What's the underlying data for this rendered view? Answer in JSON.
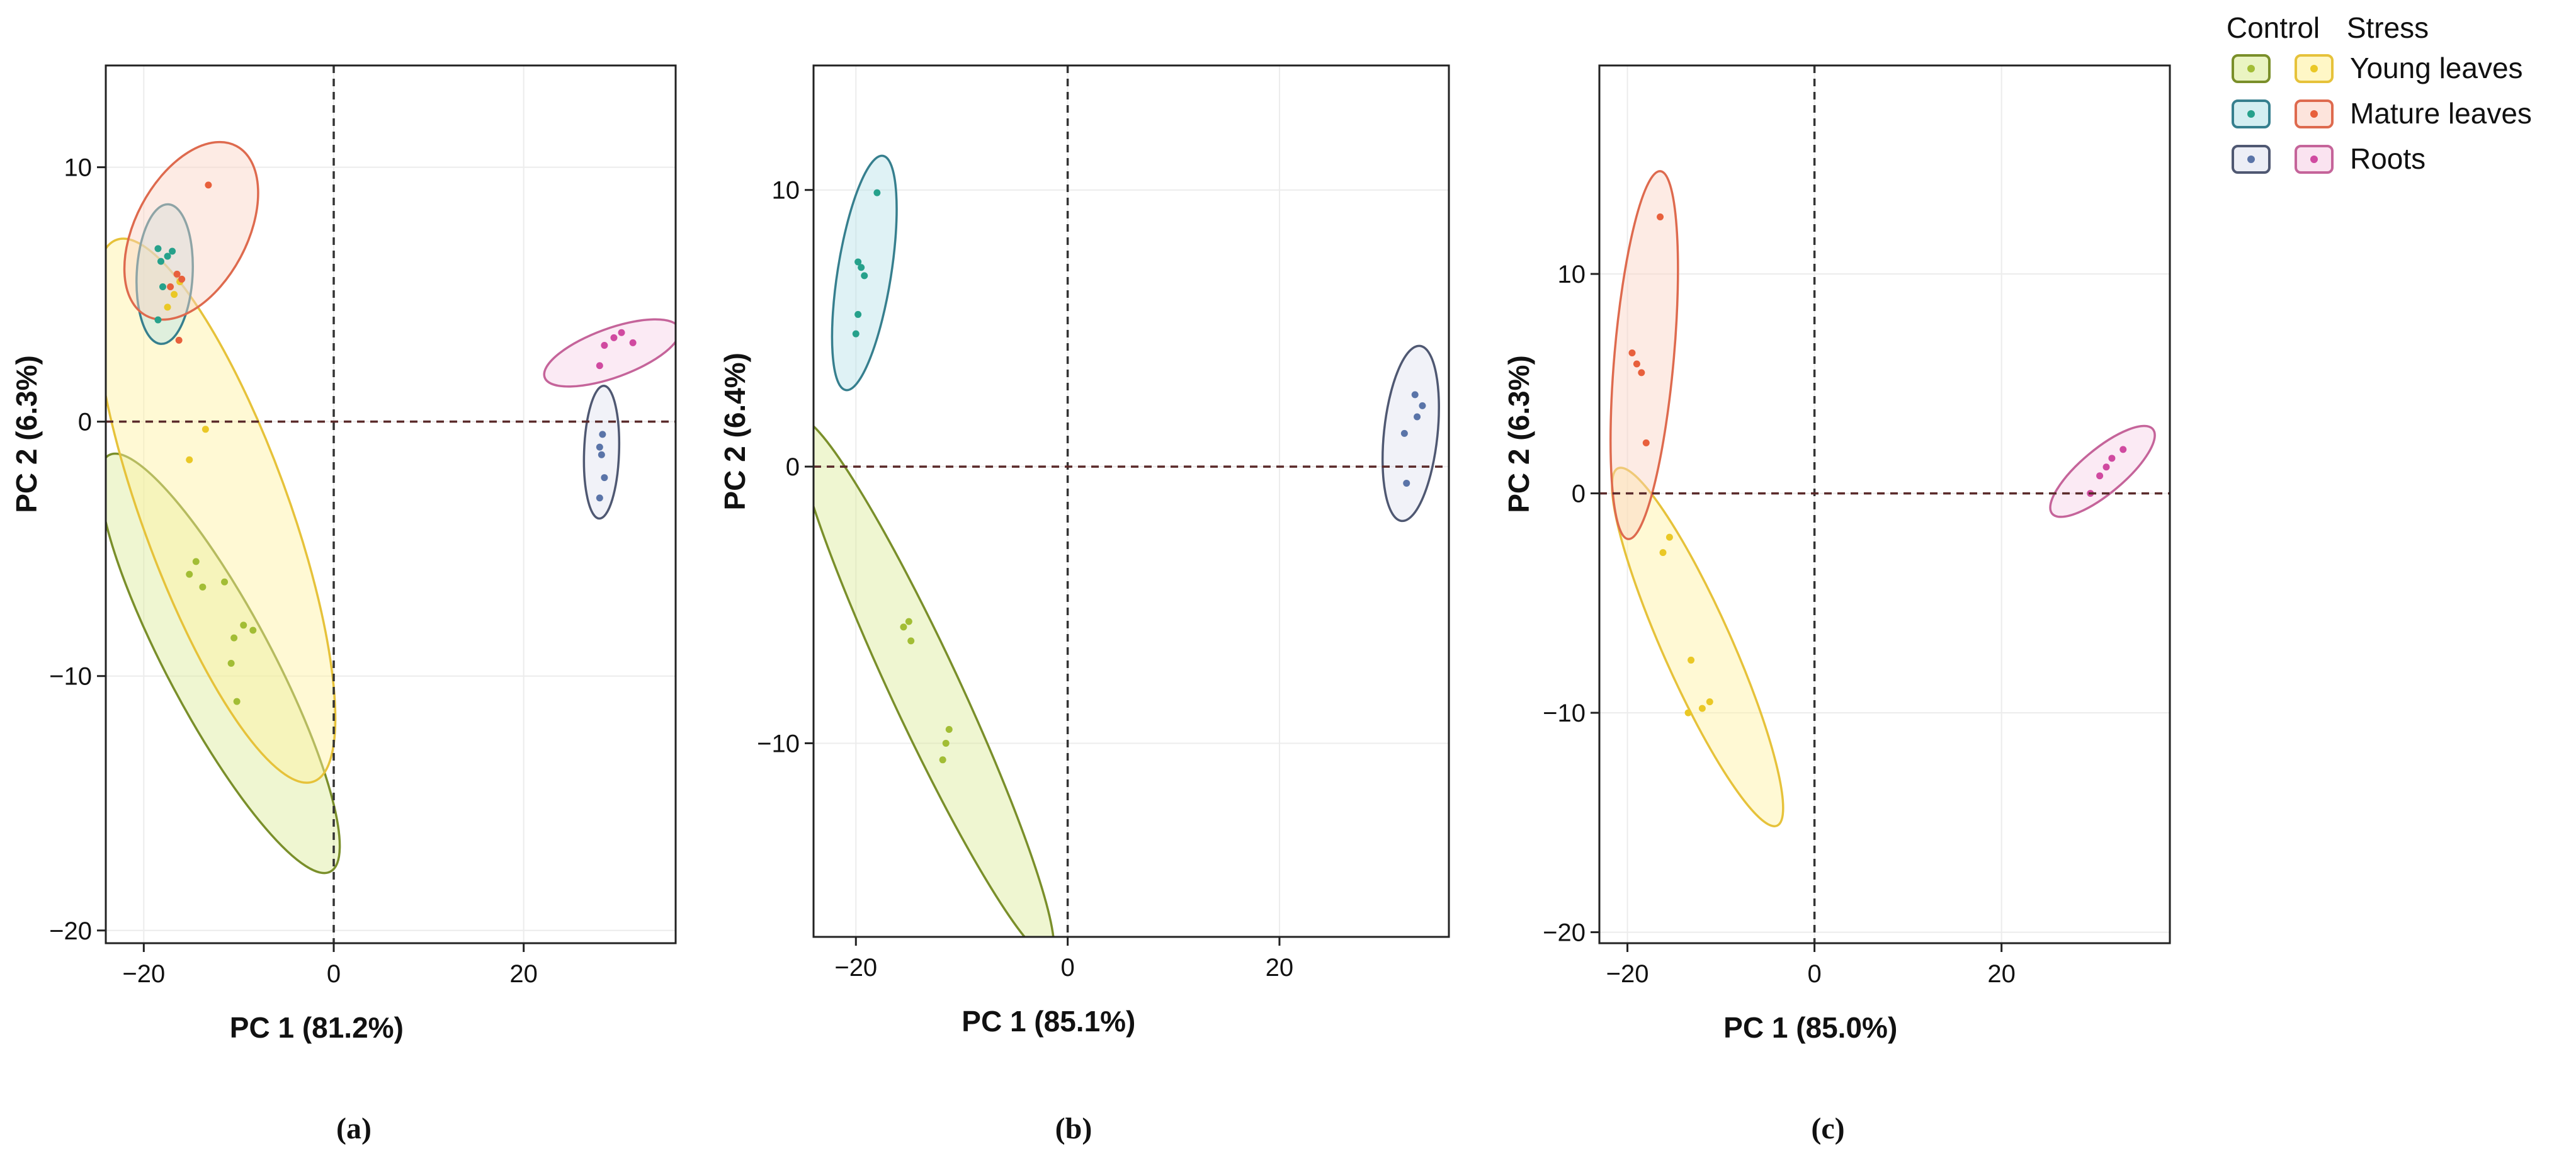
{
  "chart_data": [
    {
      "type": "scatter",
      "caption": "(a)",
      "xlabel": "PC 1 (81.2%)",
      "ylabel": "PC 2 (6.3%)",
      "xlim": [
        -24,
        36
      ],
      "ylim": [
        -20.5,
        14
      ],
      "xticks": [
        -20,
        0,
        20
      ],
      "yticks": [
        10,
        0,
        -10,
        -20
      ],
      "xtick_labels": [
        "−20",
        "0",
        "20"
      ],
      "ytick_labels": [
        "10",
        "0",
        "−10",
        "−20"
      ],
      "series": [
        {
          "group": "young",
          "condition": "control",
          "points": [
            [
              -14.5,
              -5.5
            ],
            [
              -13.8,
              -6.5
            ],
            [
              -15.2,
              -6.0
            ],
            [
              -11.5,
              -6.3
            ],
            [
              -10.5,
              -8.5
            ],
            [
              -9.5,
              -8.0
            ],
            [
              -8.5,
              -8.2
            ],
            [
              -10.8,
              -9.5
            ],
            [
              -10.2,
              -11.0
            ]
          ],
          "ellipse": {
            "cx": -12,
            "cy": -9.5,
            "rx": 13.5,
            "ry": 3.0,
            "angle": -62
          }
        },
        {
          "group": "young",
          "condition": "stress",
          "points": [
            [
              -13.5,
              -0.3
            ],
            [
              -15.2,
              -1.5
            ],
            [
              -17.5,
              4.5
            ],
            [
              -16.8,
              5.0
            ],
            [
              -16.2,
              5.5
            ]
          ],
          "ellipse": {
            "cx": -12.5,
            "cy": -3.5,
            "rx": 16.5,
            "ry": 4.2,
            "angle": -70
          }
        },
        {
          "group": "mature",
          "condition": "control",
          "points": [
            [
              -18.5,
              6.8
            ],
            [
              -18.2,
              6.3
            ],
            [
              -17.5,
              6.5
            ],
            [
              -17.0,
              6.7
            ],
            [
              -18.0,
              5.3
            ],
            [
              -18.5,
              4.0
            ]
          ],
          "ellipse": {
            "cx": -17.8,
            "cy": 5.8,
            "rx": 4.0,
            "ry": 1.6,
            "angle": 87
          }
        },
        {
          "group": "mature",
          "condition": "stress",
          "points": [
            [
              -13.2,
              9.3
            ],
            [
              -16.5,
              5.8
            ],
            [
              -16.0,
              5.6
            ],
            [
              -16.3,
              3.2
            ],
            [
              -17.2,
              5.3
            ]
          ],
          "ellipse": {
            "cx": -15.0,
            "cy": 7.5,
            "rx": 5.5,
            "ry": 3.2,
            "angle": 62
          }
        },
        {
          "group": "roots",
          "condition": "control",
          "points": [
            [
              28.3,
              -0.5
            ],
            [
              28.0,
              -1.0
            ],
            [
              28.2,
              -1.3
            ],
            [
              28.5,
              -2.2
            ],
            [
              28.0,
              -3.0
            ]
          ],
          "ellipse": {
            "cx": 28.2,
            "cy": -1.2,
            "rx": 3.8,
            "ry": 1.0,
            "angle": 88
          }
        },
        {
          "group": "roots",
          "condition": "stress",
          "points": [
            [
              28.0,
              2.2
            ],
            [
              28.5,
              3.0
            ],
            [
              29.5,
              3.3
            ],
            [
              30.3,
              3.5
            ],
            [
              31.5,
              3.1
            ]
          ],
          "ellipse": {
            "cx": 29.3,
            "cy": 2.7,
            "rx": 4.1,
            "ry": 1.4,
            "angle": 20
          }
        }
      ]
    },
    {
      "type": "scatter",
      "caption": "(b)",
      "xlabel": "PC 1 (85.1%)",
      "ylabel": "PC 2 (6.4%)",
      "xlim": [
        -24,
        36
      ],
      "ylim": [
        -17,
        14.5
      ],
      "xticks": [
        -20,
        0,
        20
      ],
      "yticks": [
        10,
        0,
        -10
      ],
      "xtick_labels": [
        "−20",
        "0",
        "20"
      ],
      "ytick_labels": [
        "10",
        "0",
        "−10"
      ],
      "series": [
        {
          "group": "young",
          "condition": "control",
          "points": [
            [
              -15.5,
              -5.8
            ],
            [
              -15.0,
              -5.6
            ],
            [
              -14.8,
              -6.3
            ],
            [
              -11.2,
              -9.5
            ],
            [
              -11.5,
              -10.0
            ],
            [
              -11.8,
              -10.6
            ]
          ],
          "ellipse": {
            "cx": -13.5,
            "cy": -8.0,
            "rx": 15.5,
            "ry": 1.8,
            "angle": -65
          }
        },
        {
          "group": "mature",
          "condition": "control",
          "points": [
            [
              -18.0,
              9.9
            ],
            [
              -19.8,
              7.4
            ],
            [
              -19.5,
              7.2
            ],
            [
              -19.2,
              6.9
            ],
            [
              -19.8,
              5.5
            ],
            [
              -20.0,
              4.8
            ]
          ],
          "ellipse": {
            "cx": -19.2,
            "cy": 7.0,
            "rx": 6.2,
            "ry": 1.4,
            "angle": 81
          }
        },
        {
          "group": "roots",
          "condition": "control",
          "points": [
            [
              32.8,
              2.6
            ],
            [
              33.5,
              2.2
            ],
            [
              33.0,
              1.8
            ],
            [
              31.8,
              1.2
            ],
            [
              32.0,
              -0.6
            ]
          ],
          "ellipse": {
            "cx": 32.4,
            "cy": 1.2,
            "rx": 4.6,
            "ry": 1.4,
            "angle": 84
          }
        }
      ]
    },
    {
      "type": "scatter",
      "caption": "(c)",
      "xlabel": "PC 1 (85.0%)",
      "ylabel": "PC 2 (6.3%)",
      "xlim": [
        -23,
        38
      ],
      "ylim": [
        -20.5,
        19.5
      ],
      "xticks": [
        -20,
        0,
        20
      ],
      "yticks": [
        10,
        0,
        -10,
        -20
      ],
      "xtick_labels": [
        "−20",
        "0",
        "20"
      ],
      "ytick_labels": [
        "10",
        "0",
        "−10",
        "−20"
      ],
      "series": [
        {
          "group": "young",
          "condition": "stress",
          "points": [
            [
              -15.5,
              -2.0
            ],
            [
              -16.2,
              -2.7
            ],
            [
              -13.2,
              -7.6
            ],
            [
              -11.2,
              -9.5
            ],
            [
              -12.0,
              -9.8
            ],
            [
              -13.5,
              -10.0
            ]
          ],
          "ellipse": {
            "cx": -12.5,
            "cy": -7.0,
            "rx": 12.5,
            "ry": 2.2,
            "angle": -66
          }
        },
        {
          "group": "mature",
          "condition": "stress",
          "points": [
            [
              -16.5,
              12.6
            ],
            [
              -19.5,
              6.4
            ],
            [
              -19.0,
              5.9
            ],
            [
              -18.5,
              5.5
            ],
            [
              -18.0,
              2.3
            ]
          ],
          "ellipse": {
            "cx": -18.2,
            "cy": 6.3,
            "rx": 11.8,
            "ry": 1.9,
            "angle": 85
          }
        },
        {
          "group": "roots",
          "condition": "stress",
          "points": [
            [
              29.5,
              0.0
            ],
            [
              30.5,
              0.8
            ],
            [
              31.2,
              1.2
            ],
            [
              31.8,
              1.6
            ],
            [
              33.0,
              2.0
            ]
          ],
          "ellipse": {
            "cx": 30.8,
            "cy": 1.0,
            "rx": 4.2,
            "ry": 1.4,
            "angle": 40
          }
        }
      ]
    }
  ],
  "legend": {
    "control_header": "Control",
    "stress_header": "Stress",
    "entries": [
      {
        "key": "young",
        "label": "Young leaves"
      },
      {
        "key": "mature",
        "label": "Mature leaves"
      },
      {
        "key": "roots",
        "label": "Roots"
      }
    ]
  },
  "colors": {
    "young": {
      "control": {
        "stroke": "#7a8f2a",
        "fill": "#dcec9a",
        "point": "#a2bd35"
      },
      "stress": {
        "stroke": "#e6c23a",
        "fill": "#fff2a0",
        "point": "#eac826"
      }
    },
    "mature": {
      "control": {
        "stroke": "#367f8e",
        "fill": "#b7e3e8",
        "point": "#26a18b"
      },
      "stress": {
        "stroke": "#de6a4e",
        "fill": "#fbd2c4",
        "point": "#e8603c"
      }
    },
    "roots": {
      "control": {
        "stroke": "#4f5872",
        "fill": "#dfe3f0",
        "point": "#5a74a8"
      },
      "stress": {
        "stroke": "#c5649a",
        "fill": "#f6d0e6",
        "point": "#d04aa0"
      }
    }
  }
}
